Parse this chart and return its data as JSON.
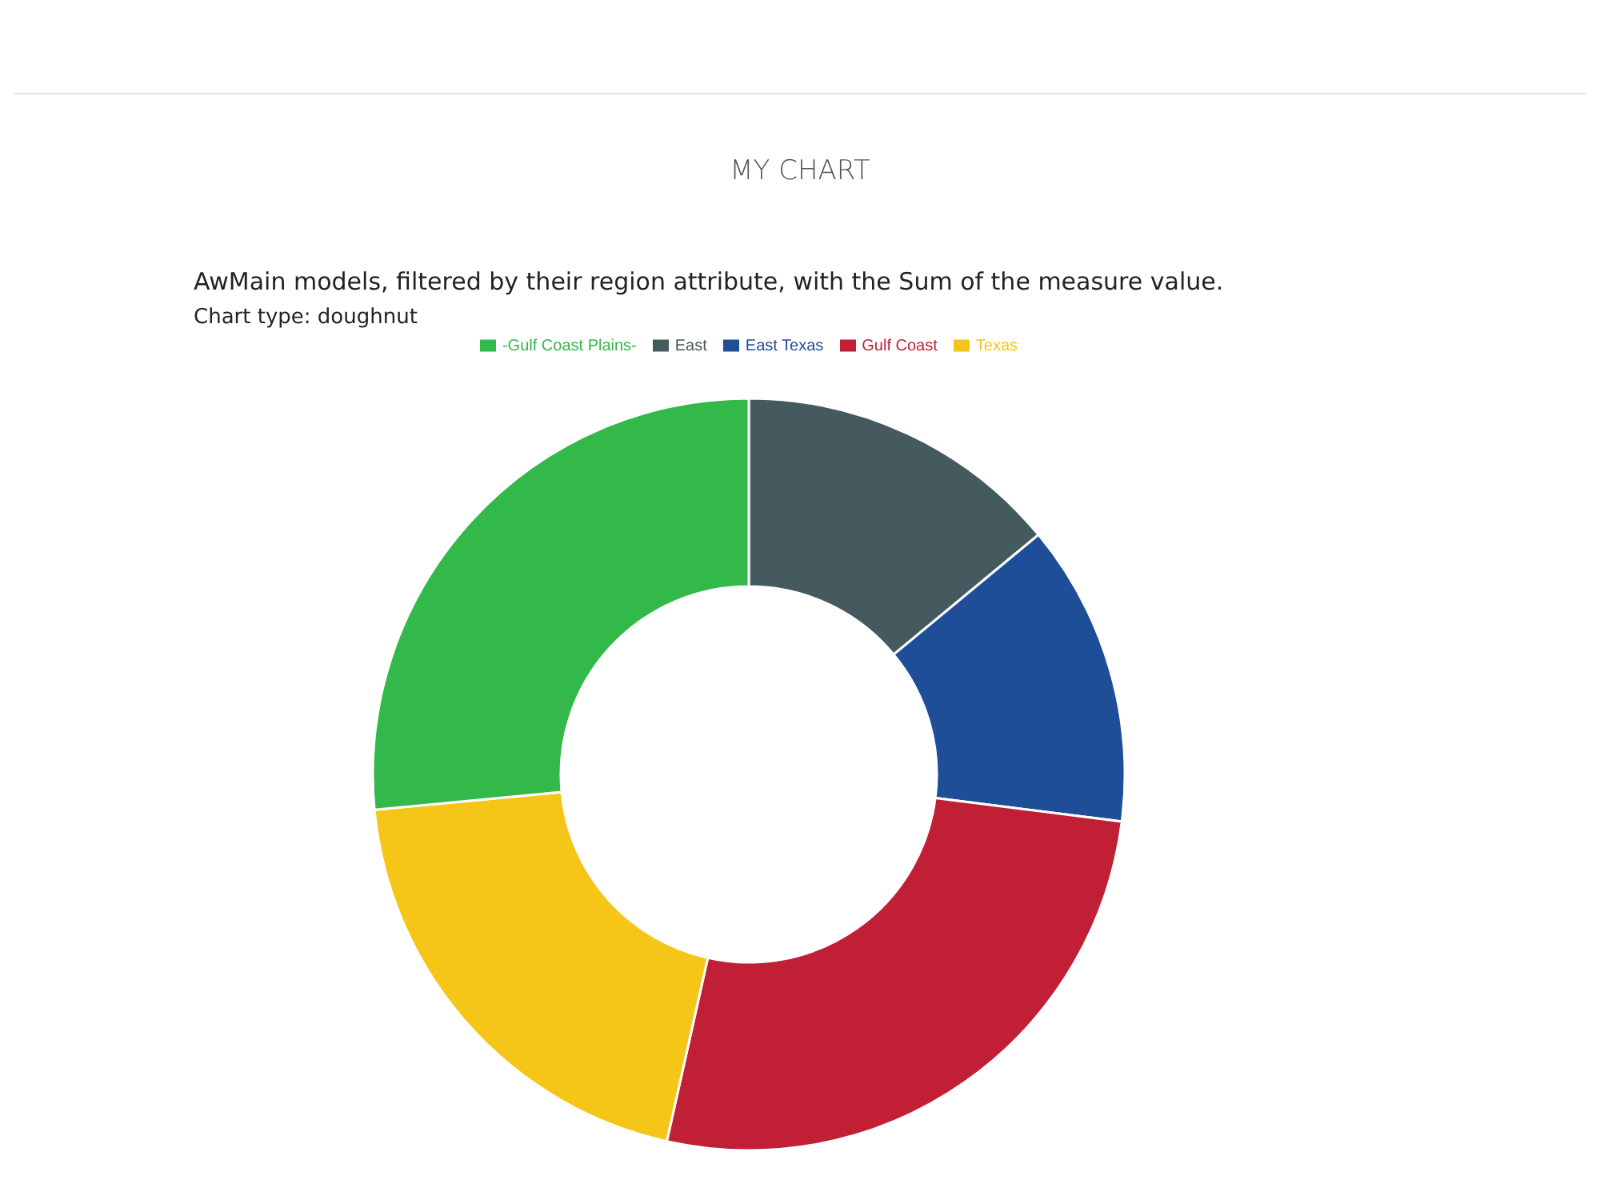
{
  "chart_data": {
    "type": "donut",
    "title": "MY CHART",
    "subtitle": "AwMain models, filtered by their region attribute, with the Sum of the measure value.",
    "annotations": [
      "Chart type: doughnut"
    ],
    "categories": [
      "East",
      "East Texas",
      "Gulf Coast",
      "Texas",
      "-Gulf Coast Plains-"
    ],
    "values": [
      14,
      13,
      26.5,
      20,
      26.5
    ],
    "colors": [
      "#455a5e",
      "#1f4e99",
      "#c01f35",
      "#f5c518",
      "#33b84a"
    ],
    "legend": "top"
  }
}
